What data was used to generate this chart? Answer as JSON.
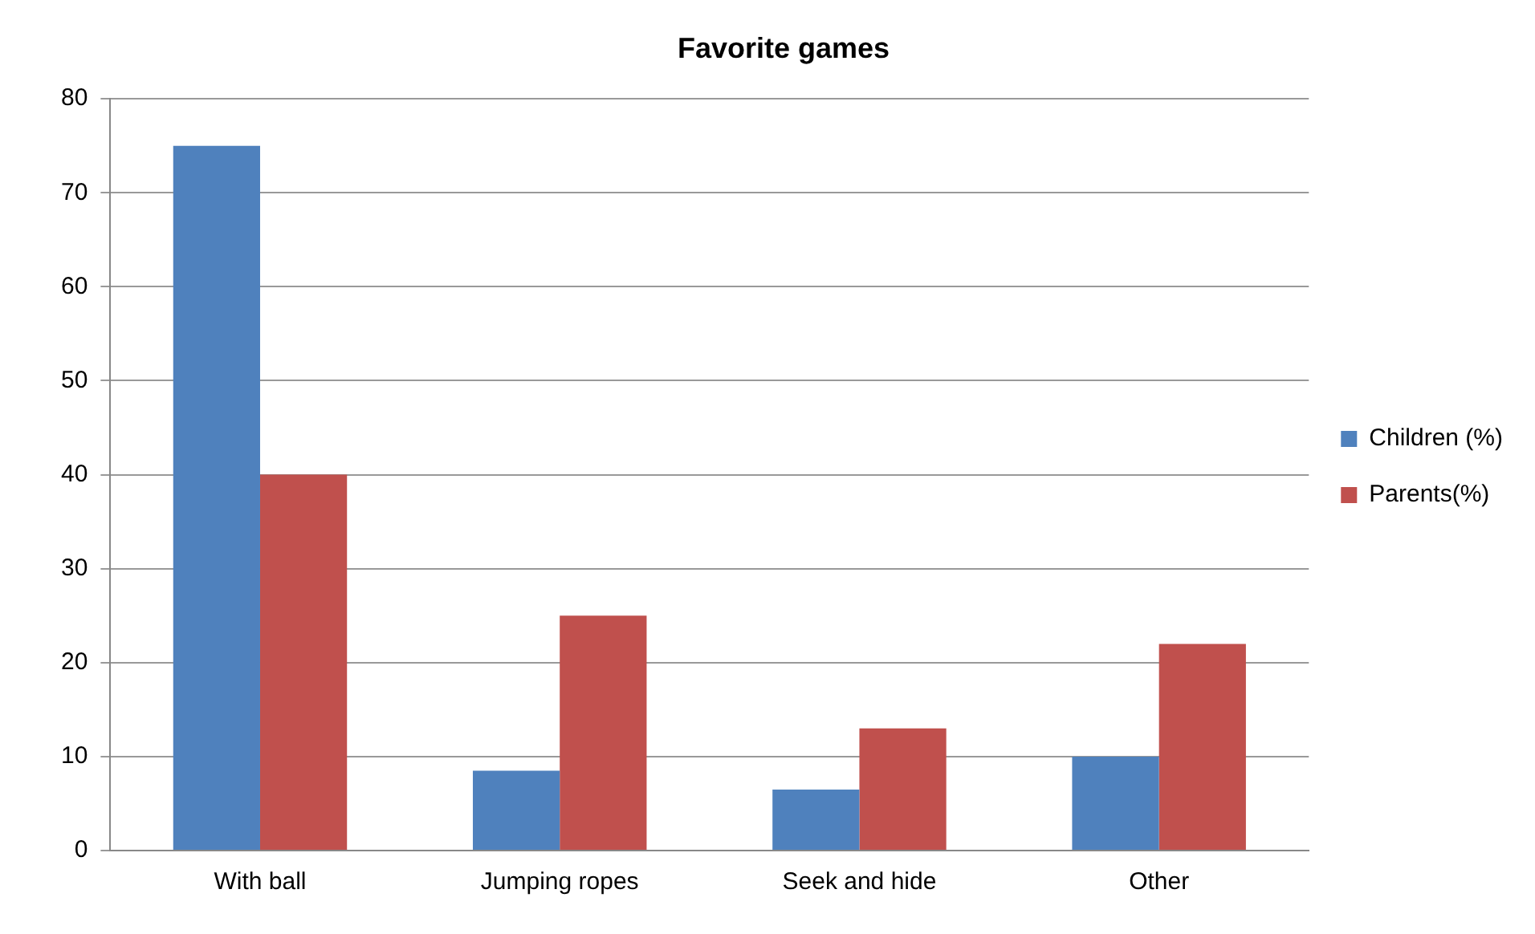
{
  "chart_data": {
    "type": "bar",
    "title": "Favorite games",
    "categories": [
      "With ball",
      "Jumping ropes",
      "Seek and hide",
      "Other"
    ],
    "series": [
      {
        "name": "Children (%)",
        "color": "#4f81bd",
        "values": [
          75,
          8.5,
          6.5,
          10
        ]
      },
      {
        "name": "Parents(%)",
        "color": "#c0504d",
        "values": [
          40,
          25,
          13,
          22
        ]
      }
    ],
    "ylim": [
      0,
      80
    ],
    "yticks": [
      0,
      10,
      20,
      30,
      40,
      50,
      60,
      70,
      80
    ],
    "grid": "y",
    "legend": "right"
  }
}
